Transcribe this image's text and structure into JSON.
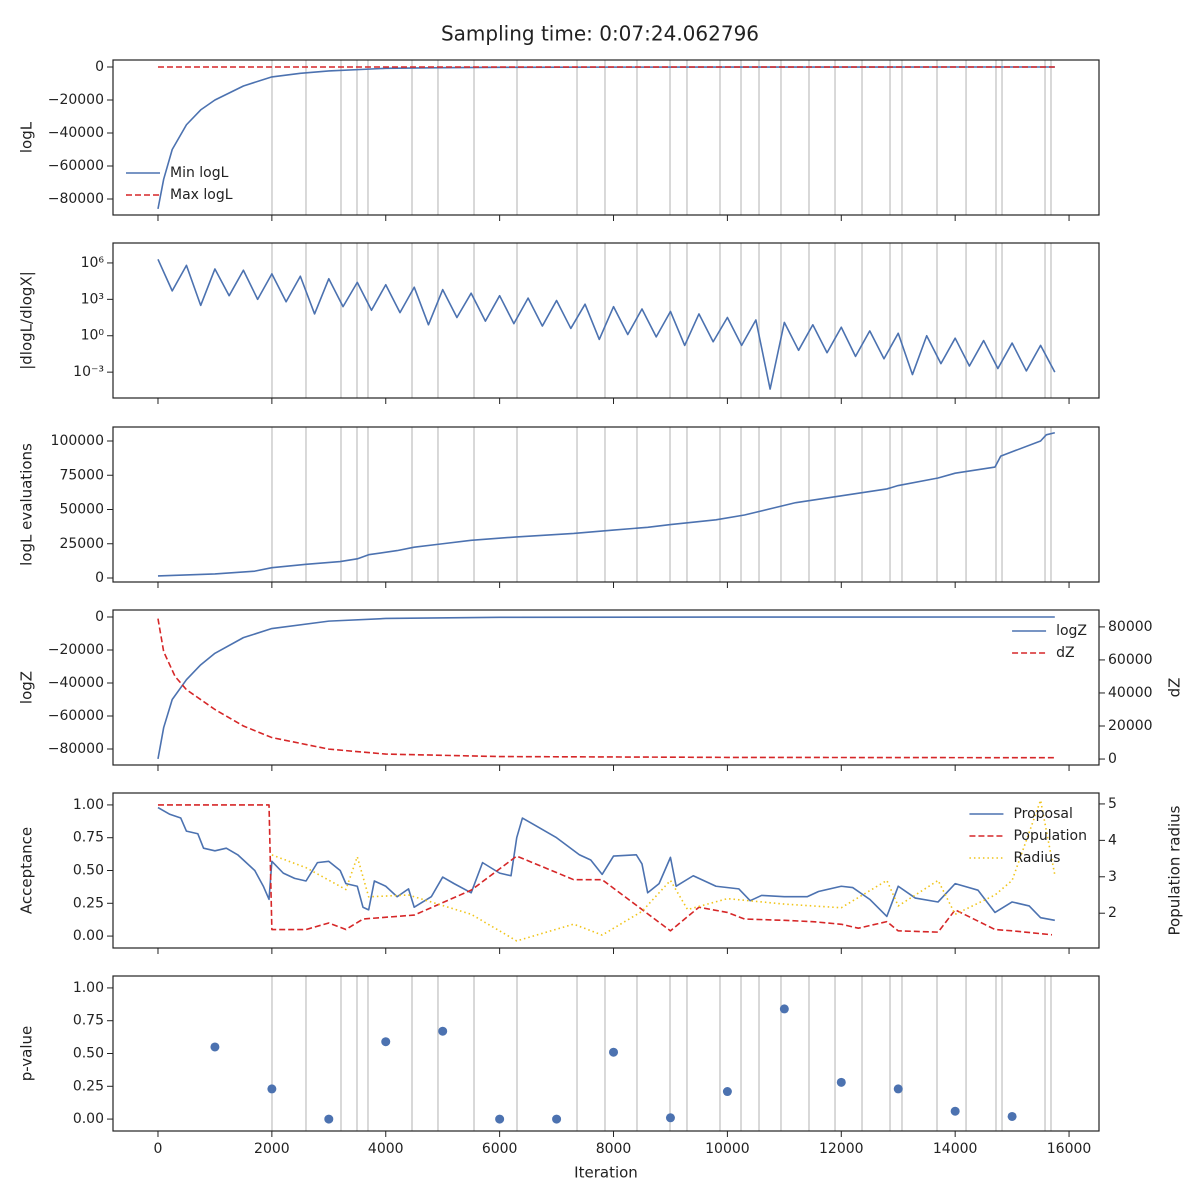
{
  "chart_data": {
    "title": "Sampling time: 0:07:24.062796",
    "xlabel": "Iteration",
    "xlim": [
      -790,
      16526
    ],
    "xticks": [
      0,
      2000,
      4000,
      6000,
      8000,
      10000,
      12000,
      14000,
      16000
    ],
    "vlines": [
      2002,
      2599,
      3214,
      3495,
      3688,
      4461,
      4917,
      5550,
      6305,
      7359,
      7850,
      8412,
      8992,
      9290,
      9870,
      10239,
      10555,
      10941,
      11433,
      11890,
      12364,
      12856,
      13066,
      13681,
      14191,
      14717,
      14823,
      15578,
      15683
    ],
    "vline_color": "#cccccc",
    "panels": [
      {
        "type": "line",
        "ylabel": "logL",
        "ylim": [
          -89700,
          4240
        ],
        "yticks": [
          0,
          {
            "value": -20000,
            "label": "−20000"
          },
          {
            "value": -40000,
            "label": "−40000"
          },
          {
            "value": -60000,
            "label": "−60000"
          },
          {
            "value": -80000,
            "label": "−80000"
          }
        ],
        "vlines": true,
        "legend": "lower left",
        "series": [
          {
            "name": "Min logL",
            "color": "#4c72b0",
            "style": "solid",
            "x": [
              0,
              100,
              250,
              500,
              750,
              1000,
              1500,
              2000,
              2500,
              3000,
              4000,
              5000,
              6000,
              8000,
              10000,
              12000,
              14000,
              15750
            ],
            "values": [
              -86000,
              -68000,
              -50000,
              -35000,
              -26000,
              -20000,
              -11500,
              -6000,
              -3800,
              -2400,
              -800,
              -400,
              -200,
              -80,
              -40,
              -20,
              -10,
              0
            ]
          },
          {
            "name": "Max logL",
            "color": "#d62728",
            "style": "dashed",
            "x": [
              0,
              15750
            ],
            "values": [
              0,
              0
            ]
          }
        ]
      },
      {
        "type": "line",
        "ylabel": "|dlogL/dlogX|",
        "yscale": "log",
        "ylim": [
          7.4e-06,
          44000000.0
        ],
        "yticks": [
          {
            "value": 1000000,
            "label": "10⁶"
          },
          {
            "value": 1000,
            "label": "10³"
          },
          {
            "value": 1,
            "label": "10⁰"
          },
          {
            "value": 0.001,
            "label": "10⁻³"
          }
        ],
        "vlines": true,
        "series": [
          {
            "color": "#4c72b0",
            "style": "solid",
            "x": [
              0,
              250,
              500,
              750,
              1000,
              1250,
              1500,
              1750,
              2000,
              2250,
              2500,
              2750,
              3000,
              3250,
              3500,
              3750,
              4000,
              4250,
              4500,
              4750,
              5000,
              5250,
              5500,
              5750,
              6000,
              6250,
              6500,
              6750,
              7000,
              7250,
              7500,
              7750,
              8000,
              8250,
              8500,
              8750,
              9000,
              9250,
              9500,
              9750,
              10000,
              10250,
              10500,
              10750,
              11000,
              11250,
              11500,
              11750,
              12000,
              12250,
              12500,
              12750,
              13000,
              13250,
              13500,
              13750,
              14000,
              14250,
              14500,
              14750,
              15000,
              15250,
              15500,
              15750
            ],
            "values": [
              2000000,
              5000,
              630000,
              316,
              320000,
              2000,
              250000,
              1000,
              126000,
              630,
              80000,
              63,
              50000,
              250,
              25000,
              126,
              16000,
              80,
              10000,
              8,
              6300,
              32,
              3200,
              16,
              2000,
              10,
              1260,
              6.3,
              800,
              4,
              400,
              0.5,
              250,
              1.26,
              160,
              0.8,
              100,
              0.16,
              63,
              0.32,
              32,
              0.16,
              20,
              4e-05,
              12.6,
              0.063,
              8,
              0.04,
              5,
              0.02,
              2.5,
              0.0126,
              1.6,
              0.00063,
              1,
              0.005,
              0.63,
              0.0032,
              0.4,
              0.002,
              0.25,
              0.00126,
              0.16,
              0.001
            ]
          }
        ]
      },
      {
        "type": "line",
        "ylabel": "logL evaluations",
        "ylim": [
          -2920,
          110220
        ],
        "yticks": [
          0,
          25000,
          50000,
          75000,
          100000
        ],
        "vlines": true,
        "series": [
          {
            "color": "#4c72b0",
            "style": "solid",
            "x": [
              0,
              1000,
              1700,
              2000,
              2600,
              3200,
              3500,
              3700,
              4200,
              4500,
              5000,
              5500,
              6300,
              7300,
              8000,
              8600,
              9000,
              9800,
              10300,
              10800,
              11200,
              12000,
              12800,
              13000,
              13700,
              14000,
              14700,
              14800,
              15500,
              15600,
              15750
            ],
            "values": [
              1500,
              3000,
              5000,
              7500,
              10000,
              12000,
              14000,
              17000,
              20000,
              22500,
              25000,
              27500,
              30000,
              32500,
              35000,
              37000,
              39000,
              42500,
              46000,
              51000,
              55000,
              60000,
              65000,
              67500,
              73000,
              76500,
              81000,
              89000,
              100000,
              104500,
              106000
            ]
          }
        ]
      },
      {
        "type": "line",
        "ylabel": "logZ",
        "ylim": [
          -89700,
          4240
        ],
        "yticks": [
          0,
          {
            "value": -20000,
            "label": "−20000"
          },
          {
            "value": -40000,
            "label": "−40000"
          },
          {
            "value": -60000,
            "label": "−60000"
          },
          {
            "value": -80000,
            "label": "−80000"
          }
        ],
        "y2label": "dZ",
        "y2lim": [
          -3609,
          90225
        ],
        "y2ticks": [
          0,
          20000,
          40000,
          60000,
          80000
        ],
        "legend": "upper right",
        "series": [
          {
            "name": "logZ",
            "color": "#4c72b0",
            "style": "solid",
            "x": [
              0,
              100,
              250,
              500,
              750,
              1000,
              1500,
              2000,
              3000,
              4000,
              6000,
              10000,
              15750
            ],
            "values": [
              -86000,
              -67000,
              -50000,
              -38000,
              -29000,
              -22000,
              -12500,
              -7000,
              -2500,
              -900,
              -200,
              -50,
              0
            ]
          },
          {
            "name": "dZ",
            "color": "#d62728",
            "style": "dashed",
            "axis": "y2",
            "x": [
              0,
              100,
              300,
              500,
              1000,
              1500,
              2000,
              3000,
              4000,
              6000,
              10000,
              15750
            ],
            "values": [
              85000,
              65000,
              50000,
              42000,
              30000,
              20000,
              13000,
              6000,
              3000,
              1500,
              1000,
              800
            ]
          }
        ]
      },
      {
        "type": "line",
        "ylabel": "Acceptance",
        "ylim": [
          -0.0909,
          1.0909
        ],
        "yticks": [
          {
            "value": 0,
            "label": "0.00"
          },
          0.25,
          {
            "value": 0.5,
            "label": "0.50"
          },
          0.75,
          {
            "value": 1,
            "label": "1.00"
          }
        ],
        "y2label": "Population radius",
        "y2lim": [
          1.045,
          5.3
        ],
        "y2ticks": [
          2,
          3,
          4,
          5
        ],
        "legend": "upper right",
        "series": [
          {
            "name": "Proposal",
            "color": "#4c72b0",
            "style": "solid",
            "x": [
              0,
              200,
              400,
              500,
              700,
              800,
              1000,
              1200,
              1400,
              1500,
              1700,
              1850,
              1950,
              2000,
              2200,
              2400,
              2600,
              2800,
              3000,
              3200,
              3300,
              3500,
              3600,
              3700,
              3800,
              4000,
              4200,
              4400,
              4500,
              4800,
              5000,
              5200,
              5500,
              5700,
              6000,
              6200,
              6300,
              6400,
              6600,
              7000,
              7400,
              7600,
              7800,
              8000,
              8400,
              8500,
              8600,
              8800,
              9000,
              9100,
              9400,
              9800,
              10200,
              10400,
              10600,
              11000,
              11400,
              11600,
              12000,
              12200,
              12500,
              12800,
              13000,
              13300,
              13700,
              14000,
              14400,
              14700,
              15000,
              15300,
              15500,
              15750
            ],
            "values": [
              0.98,
              0.93,
              0.9,
              0.8,
              0.78,
              0.67,
              0.65,
              0.67,
              0.62,
              0.58,
              0.5,
              0.38,
              0.28,
              0.57,
              0.48,
              0.44,
              0.42,
              0.56,
              0.57,
              0.5,
              0.4,
              0.38,
              0.22,
              0.2,
              0.42,
              0.38,
              0.3,
              0.36,
              0.22,
              0.3,
              0.45,
              0.4,
              0.33,
              0.56,
              0.48,
              0.46,
              0.75,
              0.9,
              0.85,
              0.75,
              0.62,
              0.58,
              0.47,
              0.61,
              0.62,
              0.55,
              0.33,
              0.4,
              0.6,
              0.38,
              0.46,
              0.38,
              0.36,
              0.27,
              0.31,
              0.3,
              0.3,
              0.34,
              0.38,
              0.37,
              0.28,
              0.15,
              0.38,
              0.29,
              0.26,
              0.4,
              0.35,
              0.18,
              0.26,
              0.23,
              0.14,
              0.12
            ]
          },
          {
            "name": "Population",
            "color": "#d62728",
            "style": "dashed",
            "x": [
              0,
              1950,
              2000,
              2600,
              3000,
              3300,
              3600,
              4500,
              5500,
              6300,
              7300,
              7800,
              9000,
              9500,
              10000,
              10300,
              11000,
              11500,
              12000,
              12300,
              12800,
              13000,
              13700,
              14000,
              14700,
              15000,
              15700
            ],
            "values": [
              1,
              1,
              0.05,
              0.05,
              0.1,
              0.05,
              0.13,
              0.16,
              0.35,
              0.61,
              0.43,
              0.43,
              0.04,
              0.22,
              0.18,
              0.13,
              0.12,
              0.11,
              0.09,
              0.06,
              0.11,
              0.04,
              0.03,
              0.2,
              0.05,
              0.04,
              0.01
            ]
          },
          {
            "name": "Radius",
            "color": "#f0c419",
            "style": "dotted",
            "axis": "y2",
            "x": [
              2000,
              2600,
              3300,
              3500,
              3700,
              4400,
              5500,
              6300,
              7300,
              7800,
              8500,
              9000,
              9300,
              10000,
              11000,
              12000,
              12800,
              13000,
              13700,
              14000,
              14700,
              15000,
              15500,
              15750
            ],
            "values": [
              3.6,
              3.25,
              2.65,
              3.55,
              2.45,
              2.5,
              1.97,
              1.24,
              1.7,
              1.4,
              2.05,
              2.9,
              2.1,
              2.4,
              2.25,
              2.15,
              2.9,
              2.2,
              2.9,
              1.97,
              2.5,
              2.9,
              5.1,
              3.05
            ]
          }
        ]
      },
      {
        "type": "scatter",
        "ylabel": "p-value",
        "ylim": [
          -0.0909,
          1.0909
        ],
        "yticks": [
          {
            "value": 0,
            "label": "0.00"
          },
          0.25,
          {
            "value": 0.5,
            "label": "0.50"
          },
          0.75,
          {
            "value": 1,
            "label": "1.00"
          }
        ],
        "vlines": true,
        "series": [
          {
            "color": "#4c72b0",
            "x": [
              1000,
              2000,
              3000,
              4000,
              5000,
              6000,
              7000,
              8000,
              9000,
              10000,
              11000,
              12000,
              13000,
              14000,
              15000
            ],
            "values": [
              0.55,
              0.23,
              0,
              0.59,
              0.67,
              0,
              0,
              0.51,
              0.01,
              0.21,
              0.84,
              0.28,
              0.23,
              0.06,
              0.02
            ]
          }
        ]
      }
    ]
  }
}
